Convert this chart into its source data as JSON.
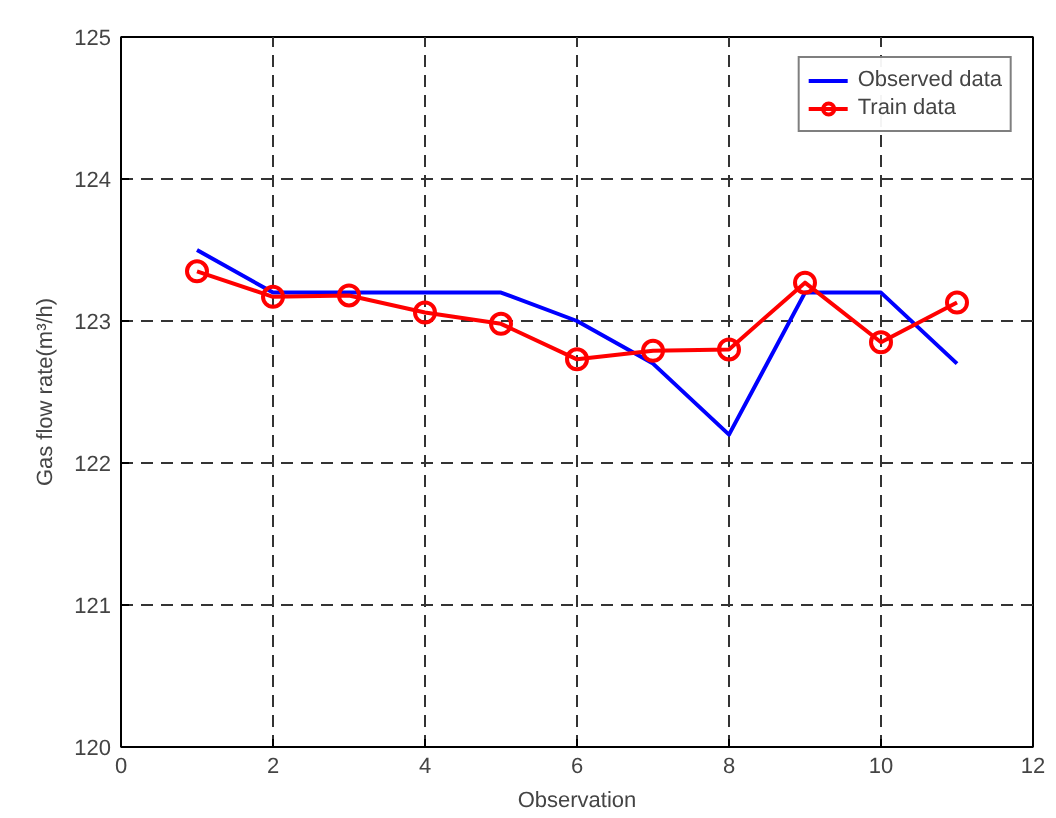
{
  "chart_data": {
    "type": "line",
    "xlabel": "Observation",
    "ylabel": "Gas flow rate(m³/h)",
    "x": [
      1,
      2,
      3,
      4,
      5,
      6,
      7,
      8,
      9,
      10,
      11
    ],
    "series": [
      {
        "name": "Observed data",
        "color": "#0000ff",
        "marker": "none",
        "values": [
          123.5,
          123.2,
          123.2,
          123.2,
          123.2,
          123.0,
          122.7,
          122.2,
          123.2,
          123.2,
          122.7
        ]
      },
      {
        "name": "Train data",
        "color": "#ff0000",
        "marker": "circle",
        "values": [
          123.35,
          123.17,
          123.18,
          123.06,
          122.98,
          122.73,
          122.79,
          122.8,
          123.27,
          122.85,
          123.13
        ]
      }
    ],
    "xlim": [
      0,
      12
    ],
    "xticks": [
      0,
      2,
      4,
      6,
      8,
      10,
      12
    ],
    "ylim": [
      120,
      125
    ],
    "yticks": [
      120,
      121,
      122,
      123,
      124,
      125
    ],
    "grid": true,
    "legend": "top right",
    "line_style": "solid"
  }
}
